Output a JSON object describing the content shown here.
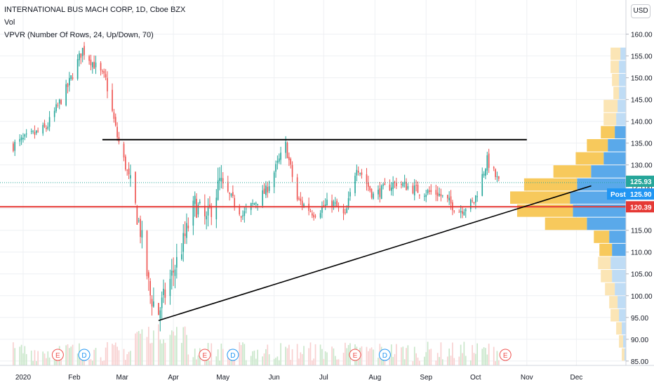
{
  "header": {
    "symbol_line": "INTERNATIONAL BUS MACH CORP, 1D, Cboe BZX",
    "vol_label": "Vol",
    "vpvr_label": "VPVR (Number Of Rows, 24, Up/Down, 70)",
    "currency": "USD"
  },
  "colors": {
    "up": "#26a69a",
    "down": "#ef5350",
    "grid": "#eef0f3",
    "trendline": "#000000",
    "support": "#e53935",
    "vp_up": "#5aa9ea",
    "vp_down": "#f7c95c",
    "vp_up_light": "#bfdcf5",
    "vp_down_light": "#fbe5b5"
  },
  "chart_data": {
    "type": "candlestick",
    "title": "INTERNATIONAL BUS MACH CORP, 1D, Cboe BZX",
    "y_axis": {
      "ylim": [
        84,
        163
      ],
      "ticks": [
        85,
        90,
        95,
        100,
        105,
        110,
        115,
        120,
        125,
        130,
        135,
        140,
        145,
        150,
        155,
        160
      ]
    },
    "x_axis": {
      "labels": [
        "2020",
        "Feb",
        "Mar",
        "Apr",
        "May",
        "Jun",
        "Jul",
        "Aug",
        "Sep",
        "Oct",
        "Nov",
        "Dec"
      ]
    },
    "grid": true,
    "price_labels": [
      {
        "label": "125.93",
        "value": 125.93,
        "kind": "last"
      },
      {
        "label": "125.90",
        "value": 125.9,
        "kind": "post",
        "tag": "Post"
      },
      {
        "label": "120.39",
        "value": 120.39,
        "kind": "support"
      }
    ],
    "horizontal_lines": [
      {
        "name": "resistance",
        "value": 135.8,
        "from": "Feb 18",
        "to": "Nov 1"
      },
      {
        "name": "support",
        "value": 120.39,
        "from": "2020",
        "to": "Dec 31"
      }
    ],
    "trendline": {
      "from": {
        "date": "Mar 23",
        "price": 94.3
      },
      "to": {
        "date": "Dec 10",
        "price": 125.2
      }
    },
    "events": [
      {
        "type": "E",
        "month": "Jan"
      },
      {
        "type": "D",
        "month": "Feb"
      },
      {
        "type": "E",
        "month": "Apr"
      },
      {
        "type": "D",
        "month": "May"
      },
      {
        "type": "E",
        "month": "Jul"
      },
      {
        "type": "D",
        "month": "Aug"
      },
      {
        "type": "E",
        "month": "Oct"
      }
    ],
    "anchors": [
      {
        "date": "2019-12-26",
        "close": 134.5
      },
      {
        "date": "2020-01-15",
        "close": 138.5
      },
      {
        "date": "2020-01-22",
        "close": 143.5
      },
      {
        "date": "2020-01-28",
        "close": 148.0
      },
      {
        "date": "2020-02-06",
        "close": 156.5
      },
      {
        "date": "2020-02-20",
        "close": 149.5
      },
      {
        "date": "2020-02-27",
        "close": 136.5
      },
      {
        "date": "2020-03-05",
        "close": 127.0
      },
      {
        "date": "2020-03-12",
        "close": 115.0
      },
      {
        "date": "2020-03-18",
        "close": 100.0
      },
      {
        "date": "2020-03-23",
        "close": 96.0
      },
      {
        "date": "2020-04-06",
        "close": 111.0
      },
      {
        "date": "2020-04-14",
        "close": 121.0
      },
      {
        "date": "2020-04-21",
        "close": 117.0
      },
      {
        "date": "2020-04-29",
        "close": 126.0
      },
      {
        "date": "2020-05-13",
        "close": 118.5
      },
      {
        "date": "2020-05-27",
        "close": 124.0
      },
      {
        "date": "2020-06-08",
        "close": 134.5
      },
      {
        "date": "2020-06-15",
        "close": 122.0
      },
      {
        "date": "2020-06-25",
        "close": 119.0
      },
      {
        "date": "2020-07-06",
        "close": 121.5
      },
      {
        "date": "2020-07-14",
        "close": 118.0
      },
      {
        "date": "2020-07-21",
        "close": 130.0
      },
      {
        "date": "2020-07-31",
        "close": 123.0
      },
      {
        "date": "2020-08-14",
        "close": 126.0
      },
      {
        "date": "2020-08-28",
        "close": 124.0
      },
      {
        "date": "2020-09-08",
        "close": 123.5
      },
      {
        "date": "2020-09-21",
        "close": 119.5
      },
      {
        "date": "2020-09-30",
        "close": 121.5
      },
      {
        "date": "2020-10-08",
        "close": 131.0
      },
      {
        "date": "2020-10-15",
        "close": 125.9
      }
    ],
    "volume_profile": [
      {
        "price": 86.5,
        "up": 0.1,
        "down": 0.2
      },
      {
        "price": 89.5,
        "up": 0.2,
        "down": 0.3
      },
      {
        "price": 92.5,
        "up": 0.3,
        "down": 0.4
      },
      {
        "price": 95.5,
        "up": 0.5,
        "down": 0.6
      },
      {
        "price": 98.5,
        "up": 0.6,
        "down": 0.6
      },
      {
        "price": 101.5,
        "up": 0.8,
        "down": 0.7
      },
      {
        "price": 104.5,
        "up": 1.0,
        "down": 0.8
      },
      {
        "price": 107.5,
        "up": 1.1,
        "down": 0.9
      },
      {
        "price": 110.5,
        "up": 1.0,
        "down": 0.9
      },
      {
        "price": 113.5,
        "up": 1.2,
        "down": 1.1
      },
      {
        "price": 116.5,
        "up": 2.8,
        "down": 3.0
      },
      {
        "price": 119.5,
        "up": 3.8,
        "down": 4.0
      },
      {
        "price": 122.5,
        "up": 4.0,
        "down": 4.3
      },
      {
        "price": 125.5,
        "up": 3.5,
        "down": 3.8
      },
      {
        "price": 128.5,
        "up": 2.5,
        "down": 2.7
      },
      {
        "price": 131.5,
        "up": 1.6,
        "down": 2.0
      },
      {
        "price": 134.5,
        "up": 1.3,
        "down": 1.5
      },
      {
        "price": 137.5,
        "up": 0.8,
        "down": 1.0
      },
      {
        "price": 140.5,
        "up": 0.7,
        "down": 0.9
      },
      {
        "price": 143.5,
        "up": 0.6,
        "down": 1.0
      },
      {
        "price": 146.5,
        "up": 0.5,
        "down": 0.4
      },
      {
        "price": 149.5,
        "up": 0.5,
        "down": 0.5
      },
      {
        "price": 152.5,
        "up": 0.5,
        "down": 0.6
      },
      {
        "price": 155.5,
        "up": 0.4,
        "down": 0.7
      }
    ]
  }
}
